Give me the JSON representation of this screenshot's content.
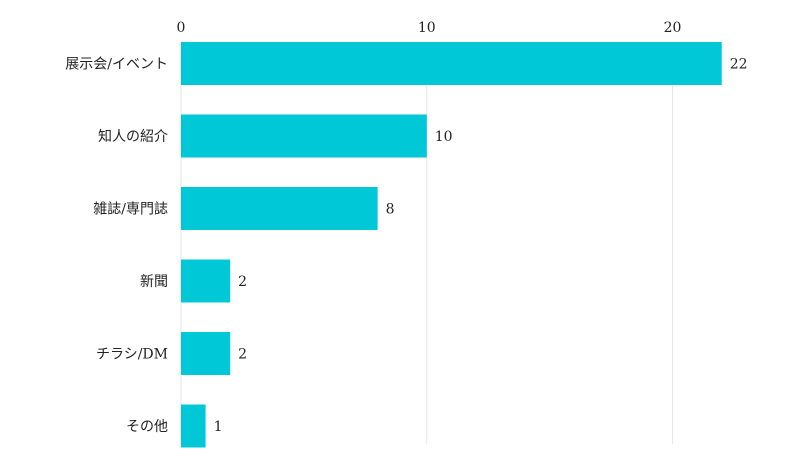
{
  "chart_data": {
    "type": "bar",
    "orientation": "horizontal",
    "categories": [
      "展示会/イベント",
      "知人の紹介",
      "雑誌/専門誌",
      "新聞",
      "チラシ/DM",
      "その他"
    ],
    "values": [
      22,
      10,
      8,
      2,
      2,
      1
    ],
    "xlim": [
      0,
      22.5
    ],
    "xticks": [
      0,
      10,
      20
    ],
    "xtick_labels": [
      "0",
      "10",
      "20"
    ],
    "x_axis_position": "top",
    "grid": true,
    "data_labels": true,
    "colors": {
      "bar": "#00c8d7",
      "grid": "#e6e6e6",
      "text": "#222222"
    }
  }
}
